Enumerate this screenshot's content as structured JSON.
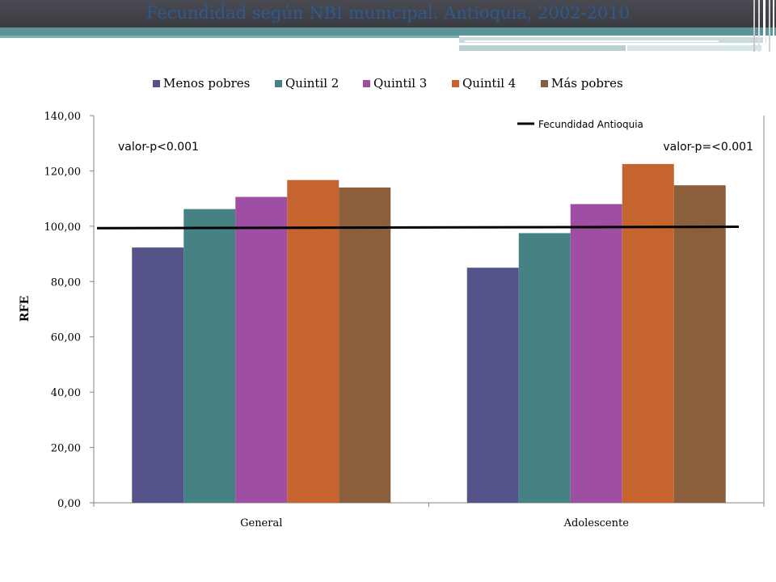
{
  "slide": {
    "title": "Fecundidad según NBI municipal. Antioquia, 2002-2010"
  },
  "colors": {
    "header": "#3b3b42",
    "accent": "#5b9597",
    "title": "#2e5a8f"
  },
  "chart_data": {
    "type": "bar",
    "title": "",
    "xlabel": "",
    "ylabel": "RFE",
    "ylim": [
      0,
      140
    ],
    "yticks": [
      "0,00",
      "20,00",
      "40,00",
      "60,00",
      "80,00",
      "100,00",
      "120,00",
      "140,00"
    ],
    "ytick_values": [
      0,
      20,
      40,
      60,
      80,
      100,
      120,
      140
    ],
    "grid": false,
    "legend_position": "top",
    "categories": [
      "General",
      "Adolescente"
    ],
    "series": [
      {
        "name": "Menos pobres",
        "color": "#55548a",
        "values": [
          92.3,
          85.0
        ]
      },
      {
        "name": "Quintil 2",
        "color": "#468184",
        "values": [
          106.2,
          97.5
        ]
      },
      {
        "name": "Quintil 3",
        "color": "#9e4ea3",
        "values": [
          110.6,
          108.0
        ]
      },
      {
        "name": "Quintil 4",
        "color": "#c5642e",
        "values": [
          116.7,
          122.5
        ]
      },
      {
        "name": "Más pobres",
        "color": "#8b5e3c",
        "values": [
          114.0,
          114.8
        ]
      }
    ],
    "reference_line": {
      "name": "Fecundidad Antioquia",
      "color": "#000000",
      "values": [
        99.3,
        99.8
      ]
    },
    "annotations": [
      "valor-p<0.001",
      "valor-p=<0.001"
    ]
  }
}
